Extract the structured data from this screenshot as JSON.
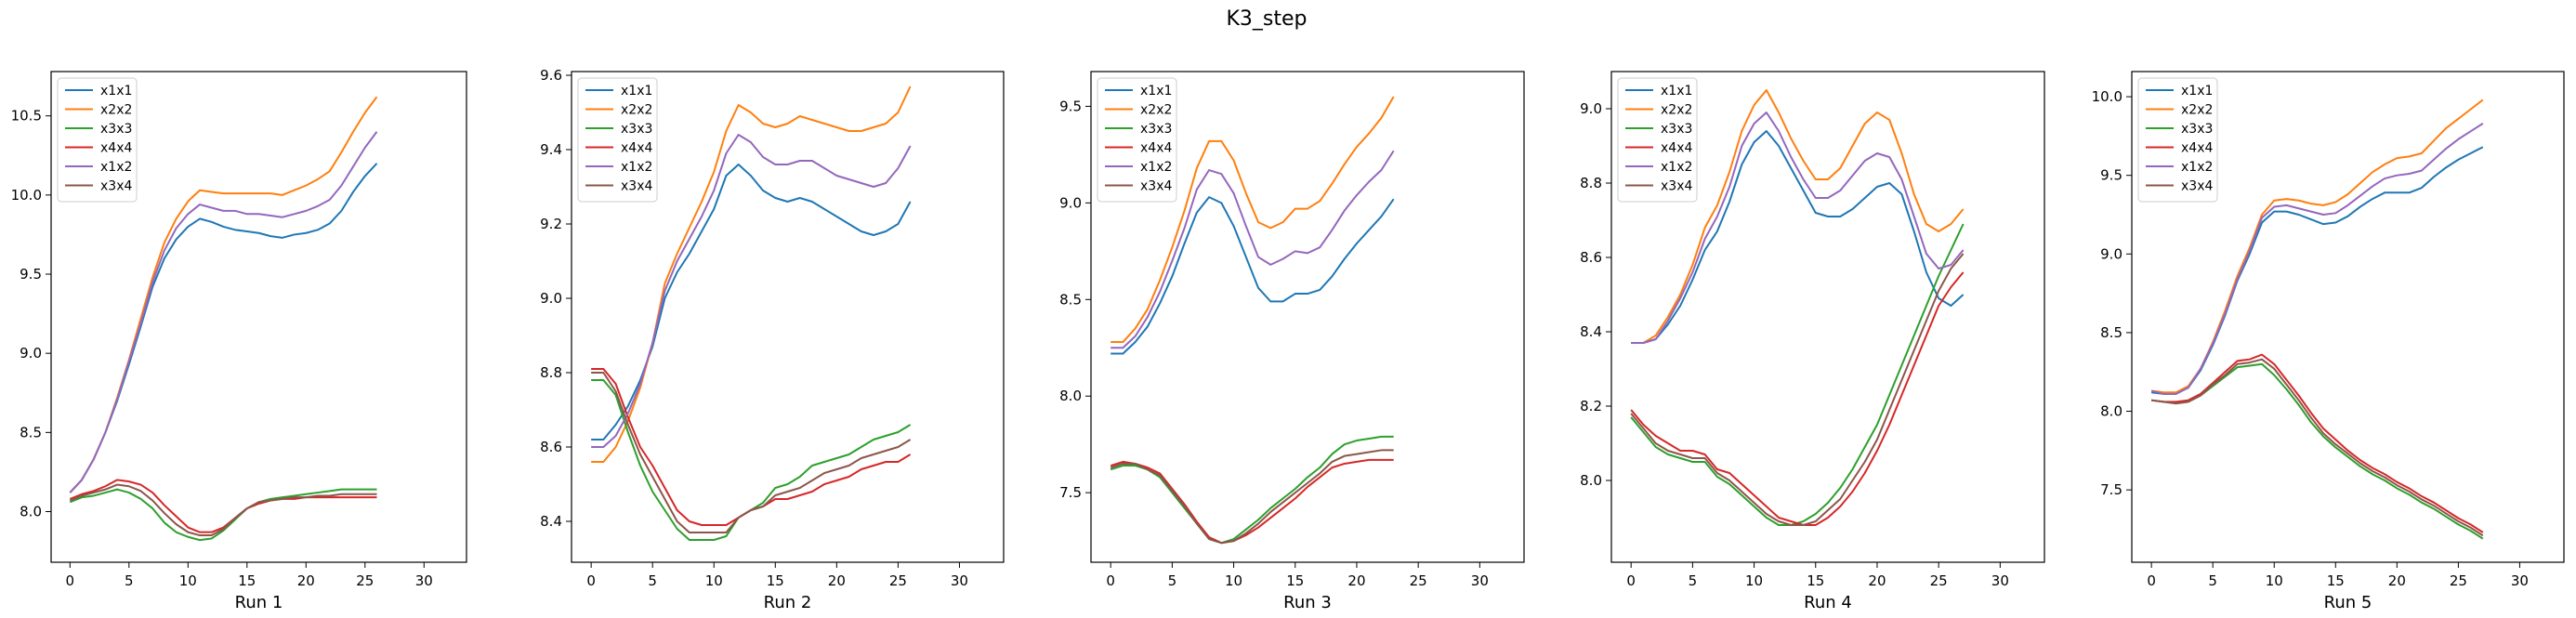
{
  "figure": {
    "suptitle": "K3_step"
  },
  "chart_data": [
    {
      "type": "line",
      "xlabel": "Run 1",
      "xlim": [
        -1.6,
        33.6
      ],
      "ylim": [
        7.68,
        10.78
      ],
      "xticks": [
        0,
        5,
        10,
        15,
        20,
        25,
        30
      ],
      "yticks": [
        8.0,
        8.5,
        9.0,
        9.5,
        10.0,
        10.5
      ],
      "legend_position": "top-left",
      "series": [
        {
          "name": "x1x1",
          "color": "#1f77b4",
          "values": [
            8.12,
            8.2,
            8.33,
            8.5,
            8.7,
            8.93,
            9.17,
            9.42,
            9.6,
            9.72,
            9.8,
            9.85,
            9.83,
            9.8,
            9.78,
            9.77,
            9.76,
            9.74,
            9.73,
            9.75,
            9.76,
            9.78,
            9.82,
            9.9,
            10.02,
            10.12,
            10.2
          ]
        },
        {
          "name": "x2x2",
          "color": "#ff7f0e",
          "values": [
            8.12,
            8.2,
            8.33,
            8.5,
            8.72,
            8.96,
            9.22,
            9.48,
            9.7,
            9.85,
            9.96,
            10.03,
            10.02,
            10.01,
            10.01,
            10.01,
            10.01,
            10.01,
            10.0,
            10.03,
            10.06,
            10.1,
            10.15,
            10.27,
            10.4,
            10.52,
            10.62
          ]
        },
        {
          "name": "x3x3",
          "color": "#2ca02c",
          "values": [
            8.06,
            8.09,
            8.1,
            8.12,
            8.14,
            8.12,
            8.08,
            8.02,
            7.93,
            7.87,
            7.84,
            7.82,
            7.83,
            7.88,
            7.95,
            8.02,
            8.06,
            8.08,
            8.09,
            8.1,
            8.11,
            8.12,
            8.13,
            8.14,
            8.14,
            8.14,
            8.14
          ]
        },
        {
          "name": "x4x4",
          "color": "#d62728",
          "values": [
            8.08,
            8.11,
            8.13,
            8.16,
            8.2,
            8.19,
            8.17,
            8.12,
            8.04,
            7.97,
            7.9,
            7.87,
            7.87,
            7.9,
            7.96,
            8.02,
            8.05,
            8.07,
            8.08,
            8.08,
            8.09,
            8.09,
            8.09,
            8.09,
            8.09,
            8.09,
            8.09
          ]
        },
        {
          "name": "x1x2",
          "color": "#9467bd",
          "values": [
            8.12,
            8.2,
            8.33,
            8.5,
            8.71,
            8.95,
            9.19,
            9.45,
            9.65,
            9.79,
            9.88,
            9.94,
            9.92,
            9.9,
            9.9,
            9.88,
            9.88,
            9.87,
            9.86,
            9.88,
            9.9,
            9.93,
            9.97,
            10.06,
            10.18,
            10.3,
            10.4
          ]
        },
        {
          "name": "x3x4",
          "color": "#8c564b",
          "values": [
            8.07,
            8.1,
            8.12,
            8.14,
            8.17,
            8.16,
            8.13,
            8.07,
            7.99,
            7.92,
            7.87,
            7.85,
            7.85,
            7.89,
            7.96,
            8.02,
            8.06,
            8.07,
            8.08,
            8.09,
            8.09,
            8.1,
            8.1,
            8.11,
            8.11,
            8.11,
            8.11
          ]
        }
      ]
    },
    {
      "type": "line",
      "xlabel": "Run 2",
      "xlim": [
        -1.6,
        33.6
      ],
      "ylim": [
        8.29,
        9.61
      ],
      "xticks": [
        0,
        5,
        10,
        15,
        20,
        25,
        30
      ],
      "yticks": [
        8.4,
        8.6,
        8.8,
        9.0,
        9.2,
        9.4,
        9.6
      ],
      "legend_position": "top-left",
      "series": [
        {
          "name": "x1x1",
          "color": "#1f77b4",
          "values": [
            8.62,
            8.62,
            8.66,
            8.71,
            8.78,
            8.87,
            9.0,
            9.07,
            9.12,
            9.18,
            9.24,
            9.33,
            9.36,
            9.33,
            9.29,
            9.27,
            9.26,
            9.27,
            9.26,
            9.24,
            9.22,
            9.2,
            9.18,
            9.17,
            9.18,
            9.2,
            9.26
          ]
        },
        {
          "name": "x2x2",
          "color": "#ff7f0e",
          "values": [
            8.56,
            8.56,
            8.6,
            8.67,
            8.76,
            8.88,
            9.04,
            9.12,
            9.19,
            9.26,
            9.34,
            9.45,
            9.52,
            9.5,
            9.47,
            9.46,
            9.47,
            9.49,
            9.48,
            9.47,
            9.46,
            9.45,
            9.45,
            9.46,
            9.47,
            9.5,
            9.57
          ]
        },
        {
          "name": "x3x3",
          "color": "#2ca02c",
          "values": [
            8.78,
            8.78,
            8.74,
            8.64,
            8.55,
            8.48,
            8.43,
            8.38,
            8.35,
            8.35,
            8.35,
            8.36,
            8.41,
            8.43,
            8.45,
            8.49,
            8.5,
            8.52,
            8.55,
            8.56,
            8.57,
            8.58,
            8.6,
            8.62,
            8.63,
            8.64,
            8.66
          ]
        },
        {
          "name": "x4x4",
          "color": "#d62728",
          "values": [
            8.81,
            8.81,
            8.77,
            8.68,
            8.6,
            8.55,
            8.49,
            8.43,
            8.4,
            8.39,
            8.39,
            8.39,
            8.41,
            8.43,
            8.44,
            8.46,
            8.46,
            8.47,
            8.48,
            8.5,
            8.51,
            8.52,
            8.54,
            8.55,
            8.56,
            8.56,
            8.58
          ]
        },
        {
          "name": "x1x2",
          "color": "#9467bd",
          "values": [
            8.6,
            8.6,
            8.63,
            8.69,
            8.77,
            8.88,
            9.02,
            9.1,
            9.16,
            9.22,
            9.29,
            9.39,
            9.44,
            9.42,
            9.38,
            9.36,
            9.36,
            9.37,
            9.37,
            9.35,
            9.33,
            9.32,
            9.31,
            9.3,
            9.31,
            9.35,
            9.41
          ]
        },
        {
          "name": "x3x4",
          "color": "#8c564b",
          "values": [
            8.8,
            8.8,
            8.75,
            8.66,
            8.58,
            8.52,
            8.46,
            8.4,
            8.37,
            8.37,
            8.37,
            8.37,
            8.41,
            8.43,
            8.44,
            8.47,
            8.48,
            8.49,
            8.51,
            8.53,
            8.54,
            8.55,
            8.57,
            8.58,
            8.59,
            8.6,
            8.62
          ]
        }
      ]
    },
    {
      "type": "line",
      "xlabel": "Run 3",
      "xlim": [
        -1.6,
        33.6
      ],
      "ylim": [
        7.14,
        9.68
      ],
      "xticks": [
        0,
        5,
        10,
        15,
        20,
        25,
        30
      ],
      "yticks": [
        7.5,
        8.0,
        8.5,
        9.0,
        9.5
      ],
      "legend_position": "top-left",
      "series": [
        {
          "name": "x1x1",
          "color": "#1f77b4",
          "values": [
            8.22,
            8.22,
            8.28,
            8.36,
            8.48,
            8.62,
            8.79,
            8.95,
            9.03,
            9.0,
            8.88,
            8.72,
            8.56,
            8.49,
            8.49,
            8.53,
            8.53,
            8.55,
            8.62,
            8.71,
            8.79,
            8.86,
            8.93,
            9.02
          ]
        },
        {
          "name": "x2x2",
          "color": "#ff7f0e",
          "values": [
            8.28,
            8.28,
            8.35,
            8.45,
            8.6,
            8.77,
            8.96,
            9.18,
            9.32,
            9.32,
            9.22,
            9.05,
            8.9,
            8.87,
            8.9,
            8.97,
            8.97,
            9.01,
            9.1,
            9.2,
            9.29,
            9.36,
            9.44,
            9.55
          ]
        },
        {
          "name": "x3x3",
          "color": "#2ca02c",
          "values": [
            7.62,
            7.64,
            7.64,
            7.62,
            7.58,
            7.5,
            7.42,
            7.34,
            7.26,
            7.24,
            7.26,
            7.31,
            7.36,
            7.42,
            7.47,
            7.52,
            7.58,
            7.63,
            7.7,
            7.75,
            7.77,
            7.78,
            7.79,
            7.79
          ]
        },
        {
          "name": "x4x4",
          "color": "#d62728",
          "values": [
            7.64,
            7.66,
            7.65,
            7.63,
            7.6,
            7.52,
            7.44,
            7.35,
            7.27,
            7.24,
            7.25,
            7.28,
            7.32,
            7.37,
            7.42,
            7.47,
            7.53,
            7.58,
            7.63,
            7.65,
            7.66,
            7.67,
            7.67,
            7.67
          ]
        },
        {
          "name": "x1x2",
          "color": "#9467bd",
          "values": [
            8.25,
            8.25,
            8.31,
            8.41,
            8.54,
            8.7,
            8.87,
            9.07,
            9.17,
            9.15,
            9.05,
            8.88,
            8.72,
            8.68,
            8.71,
            8.75,
            8.74,
            8.77,
            8.86,
            8.96,
            9.04,
            9.11,
            9.17,
            9.27
          ]
        },
        {
          "name": "x3x4",
          "color": "#8c564b",
          "values": [
            7.63,
            7.65,
            7.65,
            7.62,
            7.59,
            7.51,
            7.43,
            7.34,
            7.26,
            7.24,
            7.25,
            7.29,
            7.34,
            7.4,
            7.45,
            7.5,
            7.55,
            7.6,
            7.66,
            7.69,
            7.7,
            7.71,
            7.72,
            7.72
          ]
        }
      ]
    },
    {
      "type": "line",
      "xlabel": "Run 4",
      "xlim": [
        -1.6,
        33.6
      ],
      "ylim": [
        7.78,
        9.1
      ],
      "xticks": [
        0,
        5,
        10,
        15,
        20,
        25,
        30
      ],
      "yticks": [
        8.0,
        8.2,
        8.4,
        8.6,
        8.8,
        9.0
      ],
      "legend_position": "top-left",
      "series": [
        {
          "name": "x1x1",
          "color": "#1f77b4",
          "values": [
            8.37,
            8.37,
            8.38,
            8.42,
            8.47,
            8.54,
            8.62,
            8.67,
            8.75,
            8.85,
            8.91,
            8.94,
            8.9,
            8.84,
            8.78,
            8.72,
            8.71,
            8.71,
            8.73,
            8.76,
            8.79,
            8.8,
            8.77,
            8.67,
            8.56,
            8.49,
            8.47,
            8.5
          ]
        },
        {
          "name": "x2x2",
          "color": "#ff7f0e",
          "values": [
            8.37,
            8.37,
            8.39,
            8.44,
            8.5,
            8.58,
            8.68,
            8.74,
            8.83,
            8.94,
            9.01,
            9.05,
            8.99,
            8.92,
            8.86,
            8.81,
            8.81,
            8.84,
            8.9,
            8.96,
            8.99,
            8.97,
            8.88,
            8.77,
            8.69,
            8.67,
            8.69,
            8.73
          ]
        },
        {
          "name": "x3x3",
          "color": "#2ca02c",
          "values": [
            8.17,
            8.13,
            8.09,
            8.07,
            8.06,
            8.05,
            8.05,
            8.01,
            7.99,
            7.96,
            7.93,
            7.9,
            7.88,
            7.88,
            7.89,
            7.91,
            7.94,
            7.98,
            8.03,
            8.09,
            8.15,
            8.23,
            8.31,
            8.39,
            8.47,
            8.55,
            8.62,
            8.69
          ]
        },
        {
          "name": "x4x4",
          "color": "#d62728",
          "values": [
            8.19,
            8.15,
            8.12,
            8.1,
            8.08,
            8.08,
            8.07,
            8.03,
            8.02,
            7.99,
            7.96,
            7.93,
            7.9,
            7.89,
            7.88,
            7.88,
            7.9,
            7.93,
            7.97,
            8.02,
            8.08,
            8.15,
            8.23,
            8.31,
            8.39,
            8.47,
            8.52,
            8.56
          ]
        },
        {
          "name": "x1x2",
          "color": "#9467bd",
          "values": [
            8.37,
            8.37,
            8.38,
            8.43,
            8.49,
            8.56,
            8.65,
            8.71,
            8.79,
            8.9,
            8.96,
            8.99,
            8.94,
            8.87,
            8.81,
            8.76,
            8.76,
            8.78,
            8.82,
            8.86,
            8.88,
            8.87,
            8.81,
            8.71,
            8.61,
            8.57,
            8.58,
            8.62
          ]
        },
        {
          "name": "x3x4",
          "color": "#8c564b",
          "values": [
            8.18,
            8.14,
            8.1,
            8.08,
            8.07,
            8.06,
            8.06,
            8.02,
            8.0,
            7.97,
            7.94,
            7.91,
            7.89,
            7.88,
            7.88,
            7.89,
            7.92,
            7.95,
            8.0,
            8.05,
            8.11,
            8.19,
            8.27,
            8.35,
            8.43,
            8.51,
            8.57,
            8.61
          ]
        }
      ]
    },
    {
      "type": "line",
      "xlabel": "Run 5",
      "xlim": [
        -1.6,
        33.6
      ],
      "ylim": [
        7.04,
        10.16
      ],
      "xticks": [
        0,
        5,
        10,
        15,
        20,
        25,
        30
      ],
      "yticks": [
        7.5,
        8.0,
        8.5,
        9.0,
        9.5,
        10.0
      ],
      "legend_position": "top-left",
      "series": [
        {
          "name": "x1x1",
          "color": "#1f77b4",
          "values": [
            8.12,
            8.11,
            8.11,
            8.15,
            8.26,
            8.42,
            8.61,
            8.83,
            9.0,
            9.2,
            9.27,
            9.27,
            9.25,
            9.22,
            9.19,
            9.2,
            9.24,
            9.3,
            9.35,
            9.39,
            9.39,
            9.39,
            9.42,
            9.49,
            9.55,
            9.6,
            9.64,
            9.68
          ]
        },
        {
          "name": "x2x2",
          "color": "#ff7f0e",
          "values": [
            8.13,
            8.12,
            8.12,
            8.16,
            8.27,
            8.44,
            8.64,
            8.86,
            9.04,
            9.25,
            9.34,
            9.35,
            9.34,
            9.32,
            9.31,
            9.33,
            9.38,
            9.45,
            9.52,
            9.57,
            9.61,
            9.62,
            9.64,
            9.72,
            9.8,
            9.86,
            9.92,
            9.98
          ]
        },
        {
          "name": "x3x3",
          "color": "#2ca02c",
          "values": [
            8.07,
            8.06,
            8.05,
            8.06,
            8.1,
            8.16,
            8.22,
            8.28,
            8.29,
            8.3,
            8.23,
            8.14,
            8.04,
            7.93,
            7.84,
            7.77,
            7.71,
            7.65,
            7.6,
            7.56,
            7.51,
            7.47,
            7.42,
            7.38,
            7.33,
            7.28,
            7.24,
            7.19
          ]
        },
        {
          "name": "x4x4",
          "color": "#d62728",
          "values": [
            8.07,
            8.06,
            8.06,
            8.07,
            8.11,
            8.18,
            8.25,
            8.32,
            8.33,
            8.36,
            8.3,
            8.2,
            8.1,
            7.99,
            7.89,
            7.82,
            7.75,
            7.69,
            7.64,
            7.6,
            7.55,
            7.51,
            7.46,
            7.42,
            7.37,
            7.32,
            7.28,
            7.23
          ]
        },
        {
          "name": "x1x2",
          "color": "#9467bd",
          "values": [
            8.13,
            8.11,
            8.11,
            8.15,
            8.27,
            8.43,
            8.62,
            8.84,
            9.02,
            9.23,
            9.3,
            9.31,
            9.29,
            9.27,
            9.25,
            9.26,
            9.31,
            9.37,
            9.43,
            9.48,
            9.5,
            9.51,
            9.53,
            9.6,
            9.67,
            9.73,
            9.78,
            9.83
          ]
        },
        {
          "name": "x3x4",
          "color": "#8c564b",
          "values": [
            8.07,
            8.06,
            8.05,
            8.06,
            8.1,
            8.17,
            8.23,
            8.3,
            8.31,
            8.33,
            8.27,
            8.17,
            8.07,
            7.96,
            7.86,
            7.79,
            7.73,
            7.67,
            7.62,
            7.58,
            7.53,
            7.49,
            7.44,
            7.4,
            7.35,
            7.3,
            7.26,
            7.21
          ]
        }
      ]
    }
  ]
}
